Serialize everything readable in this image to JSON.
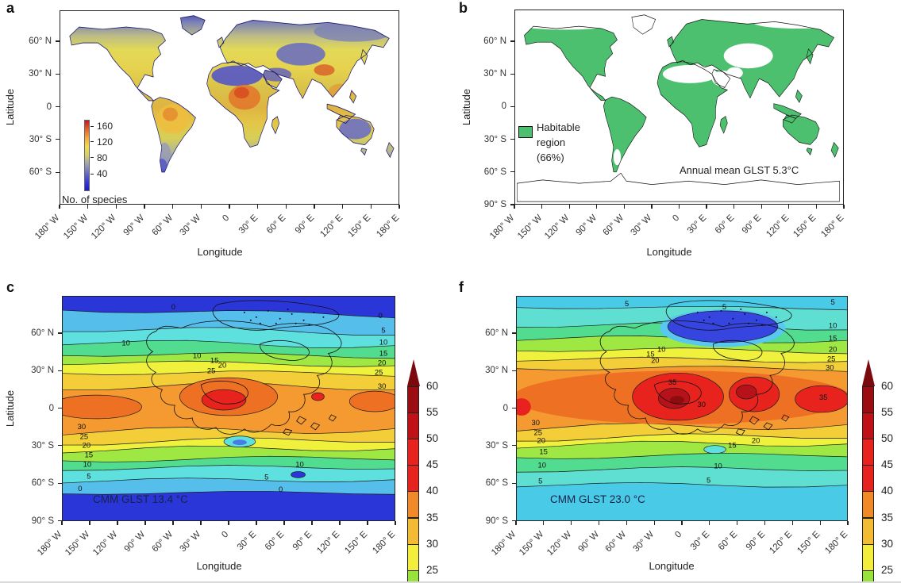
{
  "shared": {
    "lon_axis_label": "Longitude",
    "lat_axis_label": "Latitude",
    "lon_ticks": [
      "180° W",
      "150° W",
      "120° W",
      "90° W",
      "60° W",
      "30° W",
      "0",
      "30° E",
      "60° E",
      "90° E",
      "120° E",
      "150° E",
      "180° E"
    ],
    "lat_ticks_5": [
      "60° N",
      "30° N",
      "0",
      "30° S",
      "60° S"
    ],
    "lat_ticks_6": [
      "60° N",
      "30° N",
      "0",
      "30° S",
      "60° S",
      "90° S"
    ]
  },
  "panel_a": {
    "letter": "a",
    "colorbar_labels": [
      "160",
      "120",
      "80",
      "40"
    ],
    "colorbar_caption": "No. of species",
    "inset_gradient": [
      "#c3191c",
      "#e4632a",
      "#f3a93c",
      "#f0dd4b",
      "#cfd06c",
      "#9fa1b0",
      "#6b6fc0",
      "#3a3ad8",
      "#2417c9"
    ]
  },
  "panel_b": {
    "letter": "b",
    "legend_lines": [
      "Habitable",
      "region",
      "(66%)"
    ],
    "annotation": "Annual mean GLST 5.3°C",
    "habitable_color": "#4CC06E"
  },
  "panel_c": {
    "letter": "c",
    "annotation": "CMM GLST 13.4 °C",
    "contour_labels": [
      "0",
      "0",
      "10",
      "5",
      "10",
      "15",
      "20",
      "25",
      "30",
      "10",
      "15",
      "20",
      "25",
      "30",
      "25",
      "20",
      "15",
      "10",
      "5",
      "0",
      "10",
      "5",
      "0"
    ]
  },
  "panel_f": {
    "letter": "f",
    "annotation": "CMM GLST 23.0 °C",
    "contour_labels": [
      "5",
      "5",
      "5",
      "10",
      "15",
      "20",
      "25",
      "30",
      "15",
      "10",
      "20",
      "35",
      "35",
      "30",
      "30",
      "25",
      "20",
      "15",
      "10",
      "5",
      "20",
      "15",
      "10",
      "5"
    ]
  },
  "temp_colorbar": {
    "labels": [
      "60",
      "55",
      "50",
      "45",
      "40",
      "35",
      "30",
      "25"
    ],
    "arrow_color": "#7A0A0E",
    "segment_colors": [
      "#9C0D12",
      "#C11016",
      "#E8231D",
      "#E8231D",
      "#F08A28",
      "#F3BA33",
      "#F2EE3B",
      "#97E23B"
    ]
  },
  "temp_scale": {
    "cold_deep": "#2B36D9",
    "band_0_5": "#55BEEB",
    "band_5_10": "#5EE0DF",
    "band_10_15": "#52DC8F",
    "band_15_20": "#9FE743",
    "band_20_25": "#EFF13C",
    "band_25_30": "#F4CE38",
    "band_30_35": "#F49A31",
    "band_35_40": "#EE7123",
    "band_40_45": "#E8231D",
    "dark_red": "#B5121A",
    "cyan_top_f": "#49CBE8",
    "teal_f": "#5FDFD2"
  },
  "chart_data": [
    {
      "panel": "a",
      "type": "heatmap",
      "colorbar": {
        "label": "No. of species",
        "ticks": [
          160,
          120,
          80,
          40
        ]
      },
      "xlabel": "Longitude",
      "ylabel": "Latitude",
      "x_ticks": [
        "180° W",
        "150° W",
        "120° W",
        "90° W",
        "60° W",
        "30° W",
        "0",
        "30° E",
        "60° E",
        "90° E",
        "120° E",
        "150° E",
        "180° E"
      ],
      "y_ticks": [
        "60° N",
        "30° N",
        "0",
        "30° S",
        "60° S"
      ]
    },
    {
      "panel": "b",
      "type": "heatmap",
      "legend": {
        "label": "Habitable region (66%)",
        "color": "#4CC06E"
      },
      "annotation": "Annual mean GLST 5.3°C",
      "habitable_percent": 66,
      "annual_mean_glst_c": 5.3,
      "xlabel": "Longitude",
      "ylabel": "Latitude",
      "x_ticks": [
        "180° W",
        "150° W",
        "120° W",
        "90° W",
        "60° W",
        "30° W",
        "0",
        "30° E",
        "60° E",
        "90° E",
        "120° E",
        "150° E",
        "180° E"
      ],
      "y_ticks": [
        "60° N",
        "30° N",
        "0",
        "30° S",
        "60° S",
        "90° S"
      ]
    },
    {
      "panel": "c",
      "type": "heatmap",
      "annotation": "CMM GLST 13.4 °C",
      "cmm_glst_c": 13.4,
      "contour_levels_c": [
        0,
        5,
        10,
        15,
        20,
        25,
        30,
        35
      ],
      "colorbar_ticks_c": [
        60,
        55,
        50,
        45,
        40,
        35,
        30,
        25
      ],
      "xlabel": "Longitude",
      "ylabel": "Latitude",
      "y_ticks": [
        "60° N",
        "30° N",
        "0",
        "30° S",
        "60° S",
        "90° S"
      ]
    },
    {
      "panel": "f",
      "type": "heatmap",
      "annotation": "CMM GLST 23.0 °C",
      "cmm_glst_c": 23.0,
      "contour_levels_c": [
        5,
        10,
        15,
        20,
        25,
        30,
        35
      ],
      "colorbar_ticks_c": [
        60,
        55,
        50,
        45,
        40,
        35,
        30,
        25
      ],
      "xlabel": "Longitude",
      "ylabel": "Latitude",
      "y_ticks": [
        "60° N",
        "30° N",
        "0",
        "30° S",
        "60° S",
        "90° S"
      ]
    }
  ]
}
